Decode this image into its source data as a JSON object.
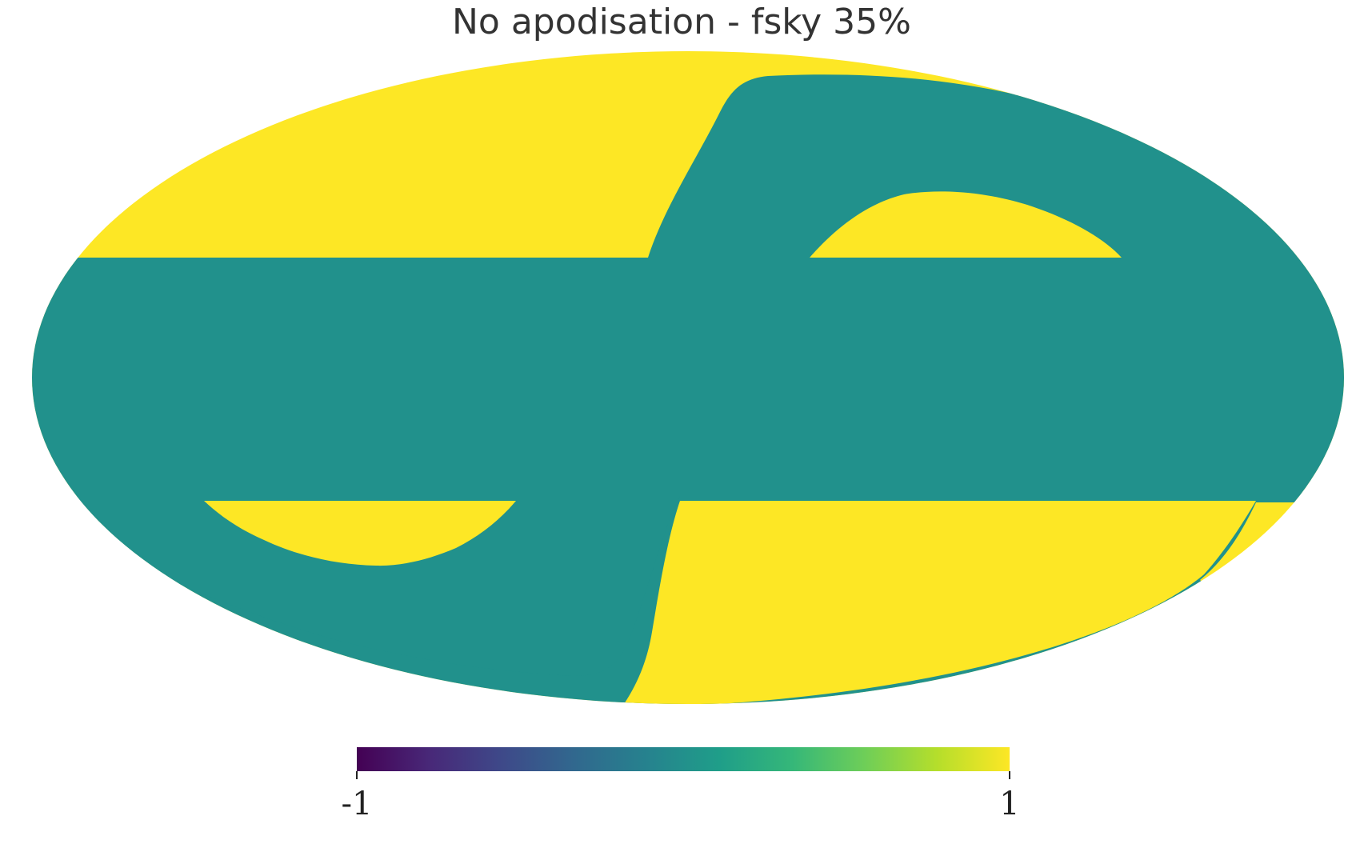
{
  "chart_data": {
    "type": "heatmap",
    "projection": "mollweide",
    "title": "No apodisation - fsky 35%",
    "value_range": [
      -1,
      1
    ],
    "colormap": "viridis",
    "region_values": {
      "masked": 1,
      "unmasked": 0
    },
    "colors": {
      "masked": "#fde725",
      "unmasked": "#21918c"
    },
    "colorbar": {
      "orientation": "horizontal",
      "min": -1,
      "max": 1,
      "ticks": [
        {
          "value": -1,
          "label": "-1"
        },
        {
          "value": 1,
          "label": "1"
        }
      ],
      "stops": [
        "#440154",
        "#482878",
        "#3e4989",
        "#31688e",
        "#26828e",
        "#1f9e89",
        "#35b779",
        "#6ece58",
        "#b5de2b",
        "#fde725"
      ]
    }
  }
}
